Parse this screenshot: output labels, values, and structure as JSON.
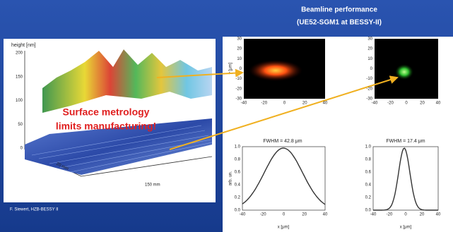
{
  "header": {
    "title": "Beamline performance",
    "subtitle": "(UE52-SGM1 at BESSY-II)"
  },
  "surface_plot": {
    "z_label": "height [nm]",
    "z_ticks": [
      "200",
      "150",
      "100",
      "50",
      "0"
    ],
    "y_label": "20 mm",
    "x_label": "150 mm",
    "annotation": [
      "Surface metrology",
      "limits manufacturing!"
    ]
  },
  "credit": "F. Siewert, HZB-BESSY II",
  "beam_images": {
    "x_ticks": [
      "-40",
      "-20",
      "0",
      "20",
      "40"
    ],
    "y_ticks": [
      "30",
      "20",
      "10",
      "0",
      "-10",
      "-20",
      "-30"
    ],
    "y_label": "y [μm]"
  },
  "profiles": {
    "fwhm": [
      "FWHM = 42.8 μm",
      "FWHM = 17.4 μm"
    ],
    "y_ticks": [
      "1.0",
      "0.8",
      "0.6",
      "0.4",
      "0.2",
      "0.0"
    ],
    "y_label": "arb. un.",
    "x_ticks": [
      "-40",
      "-20",
      "0",
      "20",
      "40"
    ],
    "x_label": "x [μm]"
  }
}
